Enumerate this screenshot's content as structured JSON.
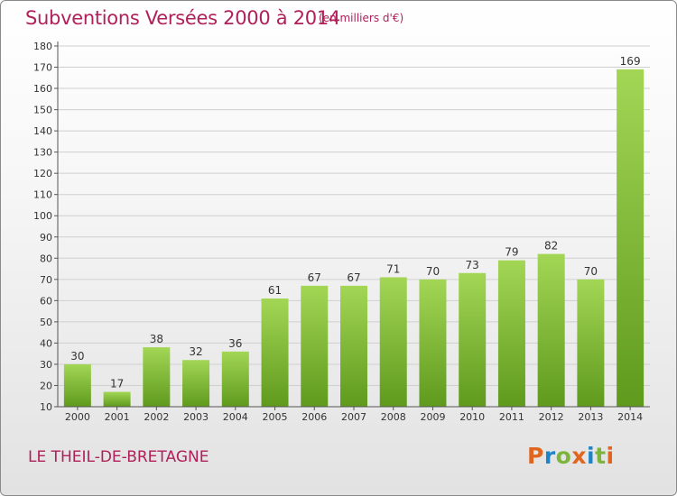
{
  "header": {
    "title": "Subventions Versées 2000 à 2014",
    "subtitle": "(en milliers d'€)"
  },
  "footer": {
    "town": "LE THEIL-DE-BRETAGNE",
    "logo": {
      "letters": [
        "P",
        "r",
        "o",
        "x",
        "i",
        "t",
        "i"
      ],
      "colors": [
        "#e0651f",
        "#1f84c6",
        "#7db53c",
        "#e0651f",
        "#1f84c6",
        "#7db53c",
        "#e0651f"
      ]
    }
  },
  "colors": {
    "accent": "#b0205a",
    "bar_top": "#a3d655",
    "bar_bottom": "#5f9a1d",
    "grid": "#cfcfcf"
  },
  "chart_data": {
    "type": "bar",
    "title": "Subventions Versées 2000 à 2014",
    "subtitle": "(en milliers d'€)",
    "categories": [
      "2000",
      "2001",
      "2002",
      "2003",
      "2004",
      "2005",
      "2006",
      "2007",
      "2008",
      "2009",
      "2010",
      "2011",
      "2012",
      "2013",
      "2014"
    ],
    "values": [
      30,
      17,
      38,
      32,
      36,
      61,
      67,
      67,
      71,
      70,
      73,
      79,
      82,
      70,
      169
    ],
    "data_labels": [
      "30",
      "17",
      "38",
      "32",
      "36",
      "61",
      "67",
      "67",
      "71",
      "70",
      "73",
      "79",
      "82",
      "70",
      "169"
    ],
    "ylim": [
      10,
      180
    ],
    "yticks": [
      10,
      20,
      30,
      40,
      50,
      60,
      70,
      80,
      90,
      100,
      110,
      120,
      130,
      140,
      150,
      160,
      170,
      180
    ],
    "grid": true,
    "xlabel": "",
    "ylabel": ""
  }
}
